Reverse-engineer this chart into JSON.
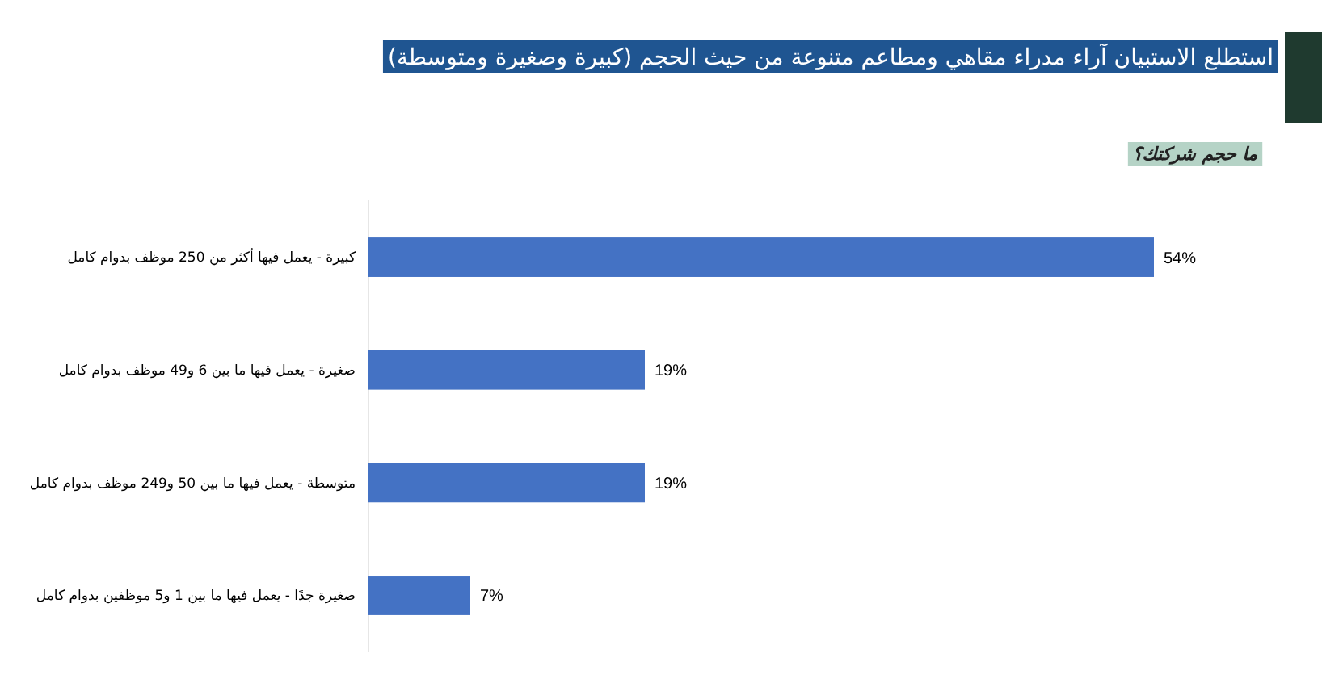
{
  "chart_data": {
    "type": "bar",
    "orientation": "horizontal",
    "title": "استطلع الاستبيان آراء مدراء مقاهي ومطاعم متنوعة من حيث الحجم (كبيرة وصغيرة ومتوسطة)",
    "subtitle": "ما حجم شركتك؟",
    "categories": [
      "كبيرة - يعمل فيها أكثر من 250 موظف بدوام كامل",
      "صغيرة - يعمل فيها ما بين 6 و49 موظف بدوام كامل",
      "متوسطة - يعمل فيها ما بين 50 و249 موظف بدوام كامل",
      "صغيرة جدًا - يعمل فيها ما بين 1 و5 موظفين بدوام كامل"
    ],
    "values": [
      54,
      19,
      19,
      7
    ],
    "value_labels": [
      "54%",
      "19%",
      "19%",
      "7%"
    ],
    "color": "#4472c4"
  }
}
